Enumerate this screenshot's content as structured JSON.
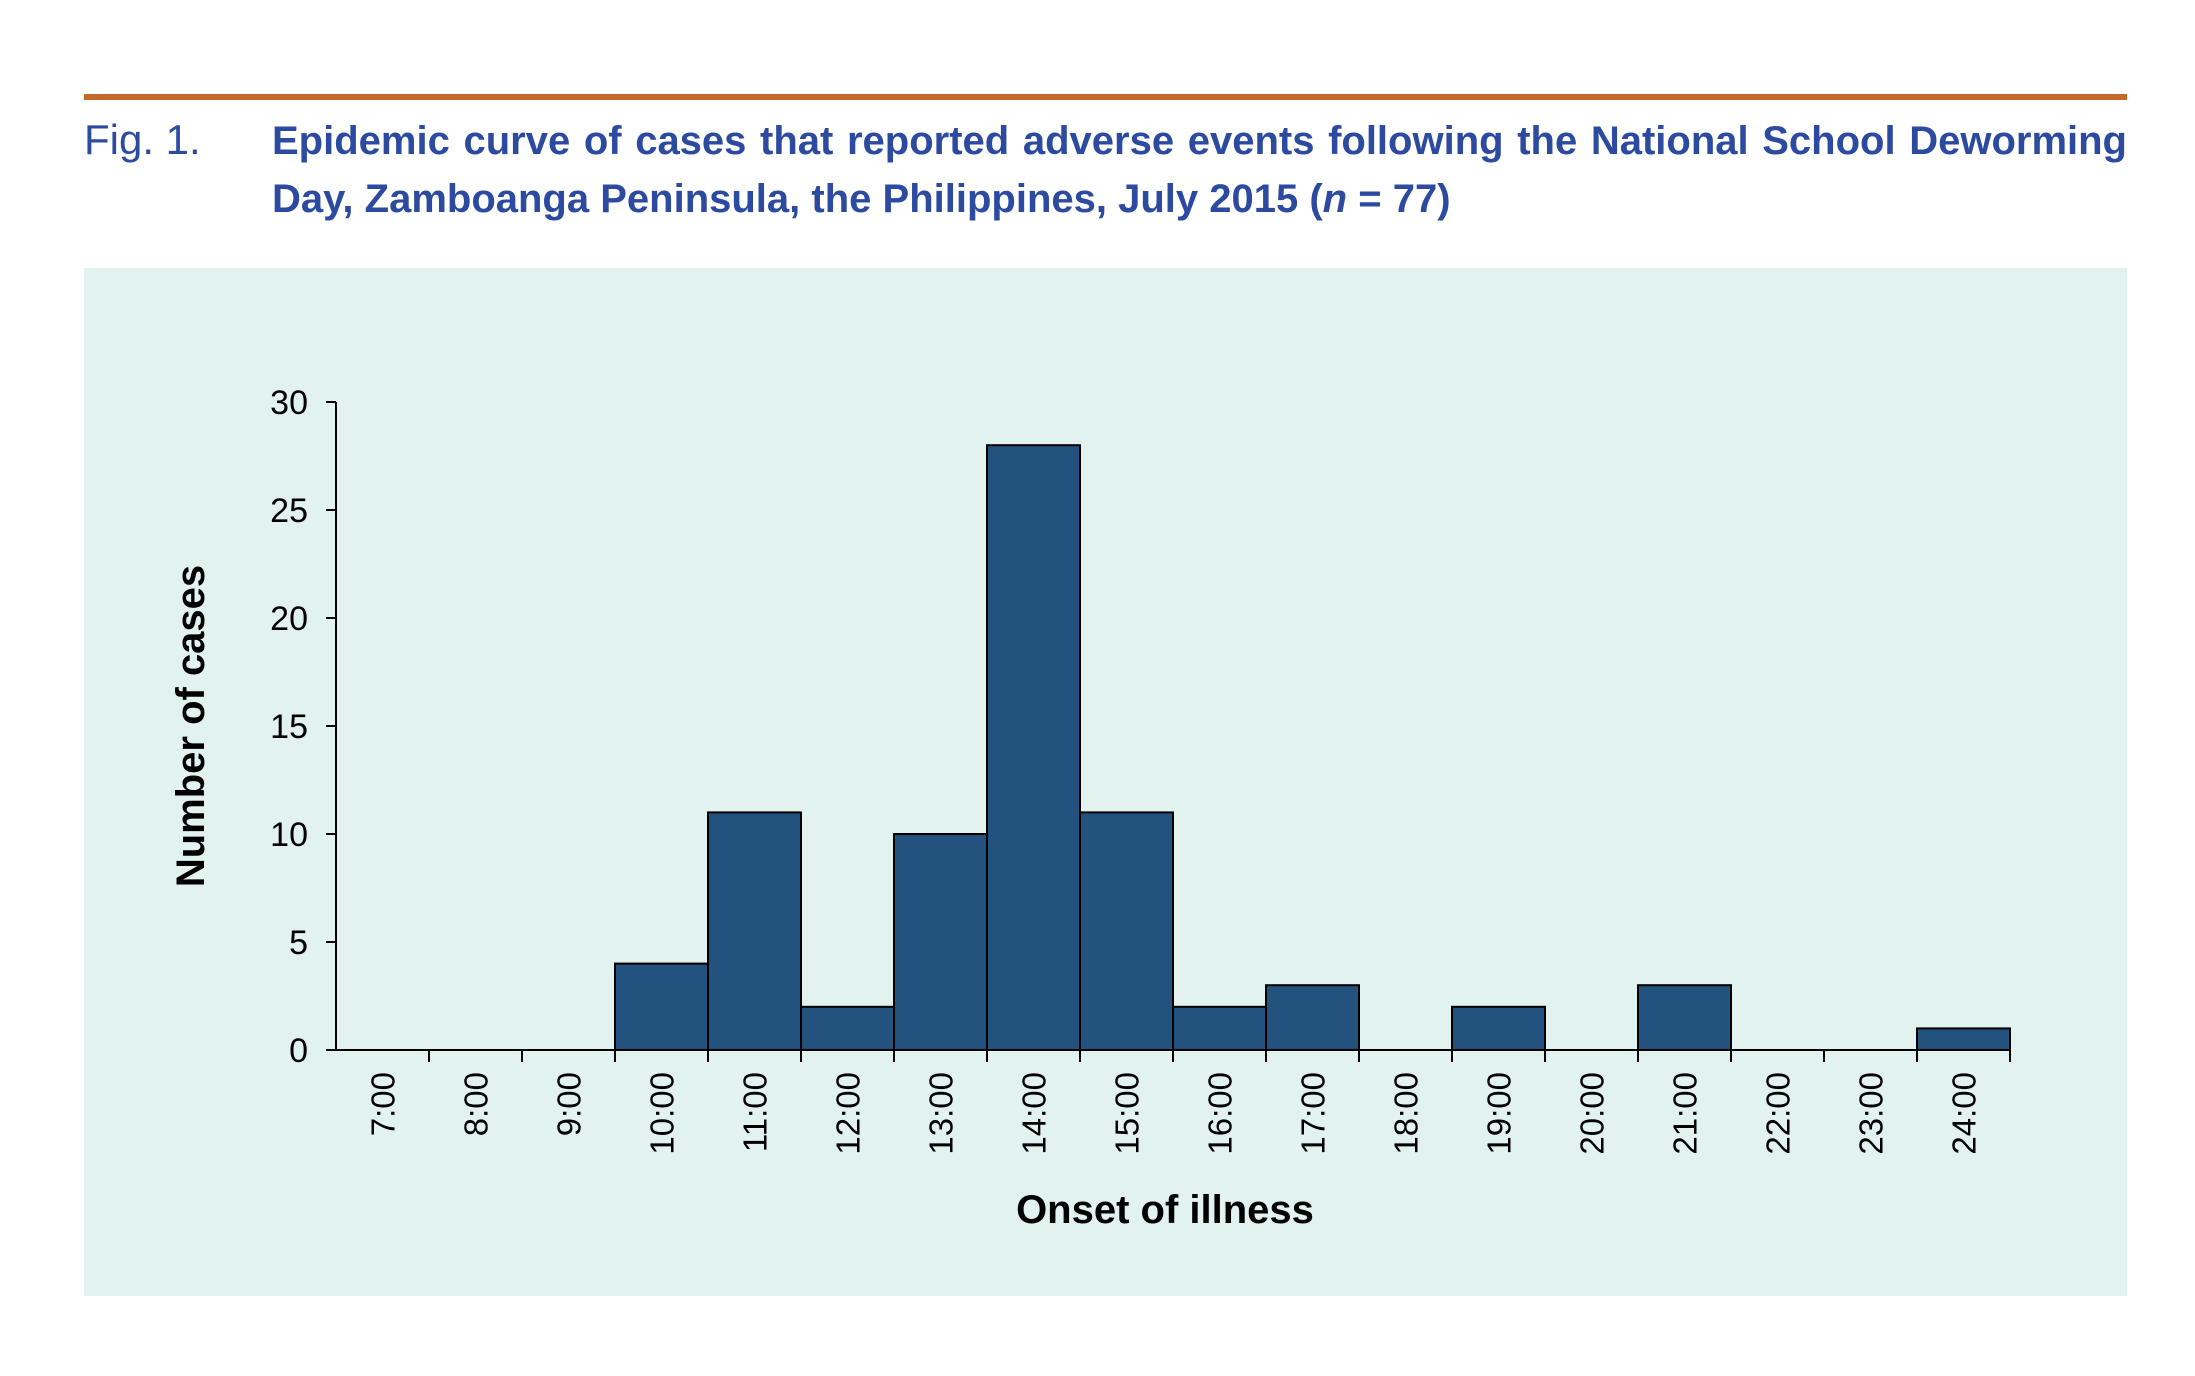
{
  "figure": {
    "label": "Fig. 1.",
    "caption_part1": "Epidemic curve of cases that reported adverse events following the National School Deworming Day, Zamboanga Peninsula, the Philippines, July 2015 (",
    "caption_n": "n",
    "caption_part2": " = 77)"
  },
  "colors": {
    "rule": "#c0692a",
    "caption": "#2b4aa0",
    "panel_background": "#e2f2ef",
    "bar_fill": "#22527d",
    "bar_stroke": "#000000"
  },
  "chart_data": {
    "type": "bar",
    "title": "",
    "xlabel": "Onset of illness",
    "ylabel": "Number of cases",
    "ylim": [
      0,
      30
    ],
    "yticks": [
      0,
      5,
      10,
      15,
      20,
      25,
      30
    ],
    "x_tick_labels": [
      "7:00",
      "8:00",
      "9:00",
      "10:00",
      "11:00",
      "12:00",
      "13:00",
      "14:00",
      "15:00",
      "16:00",
      "17:00",
      "18:00",
      "19:00",
      "20:00",
      "21:00",
      "22:00",
      "23:00",
      "24:00"
    ],
    "bins": [
      {
        "start": "7:00",
        "end": "8:00",
        "value": 0
      },
      {
        "start": "8:00",
        "end": "9:00",
        "value": 0
      },
      {
        "start": "9:00",
        "end": "10:00",
        "value": 4
      },
      {
        "start": "10:00",
        "end": "11:00",
        "value": 11
      },
      {
        "start": "11:00",
        "end": "12:00",
        "value": 2
      },
      {
        "start": "12:00",
        "end": "13:00",
        "value": 10
      },
      {
        "start": "13:00",
        "end": "14:00",
        "value": 28
      },
      {
        "start": "14:00",
        "end": "15:00",
        "value": 11
      },
      {
        "start": "15:00",
        "end": "16:00",
        "value": 2
      },
      {
        "start": "16:00",
        "end": "17:00",
        "value": 3
      },
      {
        "start": "17:00",
        "end": "18:00",
        "value": 0
      },
      {
        "start": "18:00",
        "end": "19:00",
        "value": 2
      },
      {
        "start": "19:00",
        "end": "20:00",
        "value": 0
      },
      {
        "start": "20:00",
        "end": "21:00",
        "value": 3
      },
      {
        "start": "21:00",
        "end": "22:00",
        "value": 0
      },
      {
        "start": "22:00",
        "end": "23:00",
        "value": 0
      },
      {
        "start": "23:00",
        "end": "24:00",
        "value": 1
      }
    ],
    "grid": false,
    "legend": "none"
  }
}
